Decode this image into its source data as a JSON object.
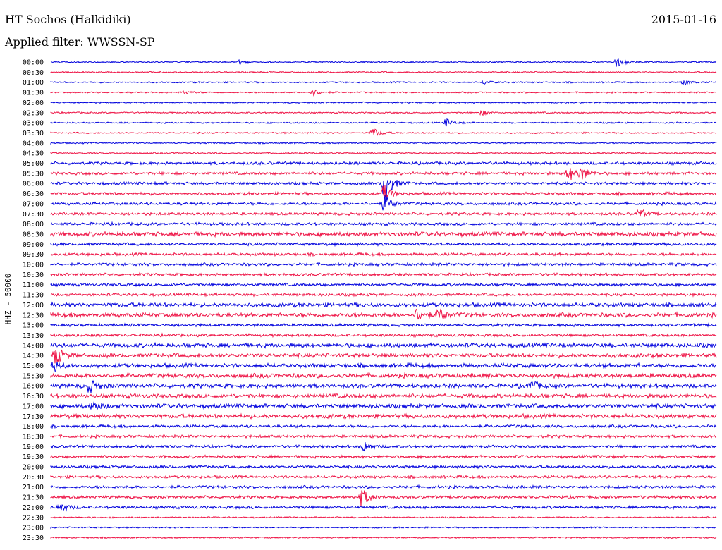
{
  "header": {
    "station": "HT Sochos (Halkidiki)",
    "date": "2015-01-16",
    "filter": "Applied filter: WWSSN-SP"
  },
  "chart_data": {
    "type": "line",
    "title": "HT Sochos (Halkidiki)",
    "ylabel": "HHZ - 50000",
    "colors": [
      "#0000dd",
      "#ee1144"
    ],
    "tick_labels": [
      "00:00",
      "00:30",
      "01:00",
      "01:30",
      "02:00",
      "02:30",
      "03:00",
      "03:30",
      "04:00",
      "04:30",
      "05:00",
      "05:30",
      "06:00",
      "06:30",
      "07:00",
      "07:30",
      "08:00",
      "08:30",
      "09:00",
      "09:30",
      "10:00",
      "10:30",
      "11:00",
      "11:30",
      "12:00",
      "12:30",
      "13:00",
      "13:30",
      "14:00",
      "14:30",
      "15:00",
      "15:30",
      "16:00",
      "16:30",
      "17:00",
      "17:30",
      "18:00",
      "18:30",
      "19:00",
      "19:30",
      "20:00",
      "20:30",
      "21:00",
      "21:30",
      "22:00",
      "22:30",
      "23:00",
      "23:30"
    ],
    "baseline_noise": [
      1,
      1,
      1,
      1,
      1,
      1,
      1,
      1,
      1,
      1,
      2,
      2,
      2,
      2,
      2,
      2,
      2,
      3,
      2,
      2,
      2,
      2,
      2,
      2,
      3,
      3,
      2,
      2,
      3,
      3,
      3,
      3,
      3,
      3,
      3,
      3,
      2,
      2,
      2,
      2,
      2,
      2,
      2,
      2,
      2,
      1,
      1,
      1
    ],
    "events": [
      {
        "row": "00:00",
        "minute": 25.5,
        "amplitude": 8
      },
      {
        "row": "00:00",
        "minute": 8.5,
        "amplitude": 3
      },
      {
        "row": "01:00",
        "minute": 19.5,
        "amplitude": 3
      },
      {
        "row": "01:00",
        "minute": 28.5,
        "amplitude": 4
      },
      {
        "row": "01:30",
        "minute": 6,
        "amplitude": 3
      },
      {
        "row": "01:30",
        "minute": 11.8,
        "amplitude": 6
      },
      {
        "row": "02:30",
        "minute": 19.4,
        "amplitude": 4
      },
      {
        "row": "03:00",
        "minute": 17.8,
        "amplitude": 6
      },
      {
        "row": "03:30",
        "minute": 14.5,
        "amplitude": 8
      },
      {
        "row": "05:30",
        "minute": 23.3,
        "amplitude": 12
      },
      {
        "row": "05:30",
        "minute": 23.9,
        "amplitude": 10
      },
      {
        "row": "06:30",
        "minute": 15,
        "amplitude": 14
      },
      {
        "row": "06:00",
        "minute": 15,
        "amplitude": 30
      },
      {
        "row": "07:00",
        "minute": 15,
        "amplitude": 14
      },
      {
        "row": "07:30",
        "minute": 26.5,
        "amplitude": 8
      },
      {
        "row": "12:30",
        "minute": 16.5,
        "amplitude": 10
      },
      {
        "row": "12:30",
        "minute": 17.5,
        "amplitude": 10
      },
      {
        "row": "14:30",
        "minute": 0.2,
        "amplitude": 14
      },
      {
        "row": "15:00",
        "minute": 0.1,
        "amplitude": 10
      },
      {
        "row": "16:00",
        "minute": 1.7,
        "amplitude": 10
      },
      {
        "row": "16:00",
        "minute": 21.6,
        "amplitude": 8
      },
      {
        "row": "17:00",
        "minute": 1.9,
        "amplitude": 7
      },
      {
        "row": "19:00",
        "minute": 14.1,
        "amplitude": 8
      },
      {
        "row": "21:30",
        "minute": 14.0,
        "amplitude": 14
      },
      {
        "row": "22:00",
        "minute": 0.4,
        "amplitude": 8
      }
    ]
  }
}
